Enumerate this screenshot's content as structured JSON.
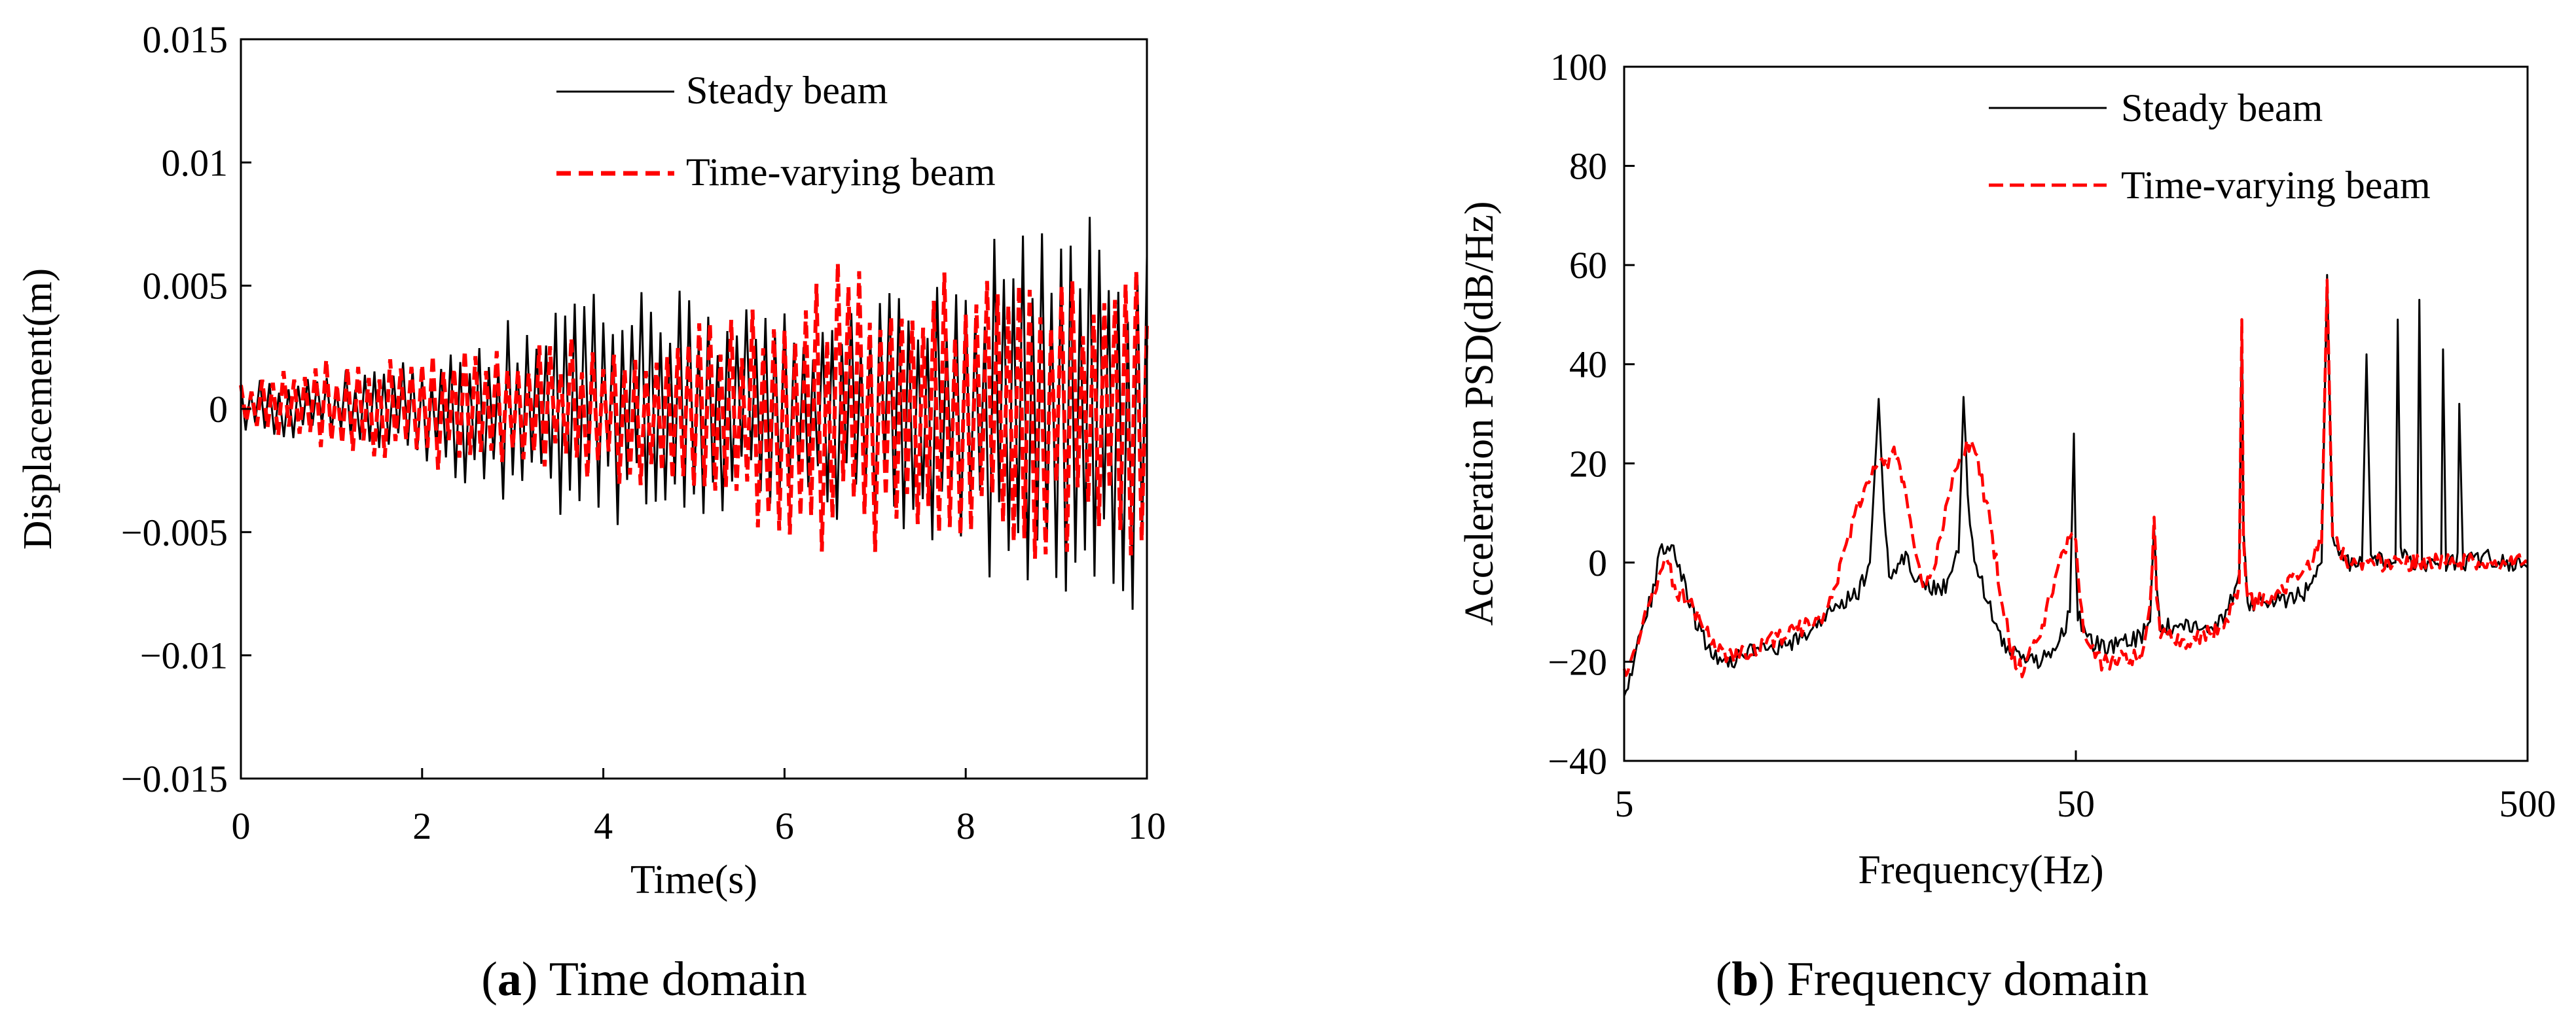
{
  "captions": {
    "a": {
      "open": "(",
      "letter": "a",
      "close": ")",
      "text": " Time domain"
    },
    "b": {
      "open": "(",
      "letter": "b",
      "close": ")",
      "text": " Frequency domain"
    }
  },
  "colors": {
    "steady": "#000000",
    "varying": "#ff0000"
  },
  "chart_data": [
    {
      "type": "line",
      "title": "",
      "xlabel": "Time(s)",
      "ylabel": "Displacement(m)",
      "xlim": [
        0,
        10
      ],
      "ylim": [
        -0.015,
        0.015
      ],
      "xticks": [
        0,
        2,
        4,
        6,
        8,
        10
      ],
      "xtick_labels": [
        "0",
        "2",
        "4",
        "6",
        "8",
        "10"
      ],
      "yticks": [
        0.015,
        0.01,
        0.005,
        0,
        -0.005,
        -0.01,
        -0.015
      ],
      "ytick_labels": [
        "0.015",
        "0.01",
        "0.005",
        "0",
        "−0.005",
        "−0.01",
        "−0.015"
      ],
      "legend_position": "top-right",
      "series": [
        {
          "name": "Steady beam",
          "style": "solid",
          "approx_oscillation_hz": 9.5,
          "envelope_t": [
            0,
            1,
            2,
            2.5,
            3,
            4,
            5,
            6,
            7,
            8,
            8.5,
            9,
            10
          ],
          "envelope_max": [
            0.0012,
            0.0015,
            0.002,
            0.003,
            0.0038,
            0.0048,
            0.0048,
            0.004,
            0.0045,
            0.006,
            0.0075,
            0.008,
            0.0075
          ],
          "envelope_min": [
            -0.0012,
            -0.0012,
            -0.002,
            -0.0035,
            -0.0042,
            -0.0048,
            -0.0045,
            -0.004,
            -0.005,
            -0.0065,
            -0.0075,
            -0.0085,
            -0.0085
          ]
        },
        {
          "name": "Time-varying beam",
          "style": "dashed",
          "approx_oscillation_hz": 8.5,
          "envelope_t": [
            0,
            1,
            2,
            2.5,
            3,
            4,
            5,
            6,
            6.5,
            7,
            8,
            9,
            10
          ],
          "envelope_max": [
            0.0012,
            0.0022,
            0.0025,
            0.0025,
            0.0028,
            0.003,
            0.0035,
            0.0048,
            0.006,
            0.006,
            0.006,
            0.0058,
            0.0057
          ],
          "envelope_min": [
            -0.001,
            -0.0018,
            -0.0025,
            -0.0028,
            -0.003,
            -0.003,
            -0.0035,
            -0.0055,
            -0.006,
            -0.0065,
            -0.0065,
            -0.006,
            -0.006
          ]
        }
      ]
    },
    {
      "type": "line",
      "title": "",
      "xlabel": "Frequency(Hz)",
      "ylabel": "Acceleration PSD(dB/Hz)",
      "xscale": "log",
      "xlim": [
        5,
        500
      ],
      "ylim": [
        -40,
        100
      ],
      "xticks": [
        5,
        50,
        500
      ],
      "xtick_labels": [
        "5",
        "50",
        "500"
      ],
      "yticks": [
        100,
        80,
        60,
        40,
        20,
        0,
        -20,
        -40
      ],
      "ytick_labels": [
        "100",
        "80",
        "60",
        "40",
        "20",
        "0",
        "−20",
        "−40"
      ],
      "legend_position": "top-right",
      "series": [
        {
          "name": "Steady beam",
          "style": "solid",
          "x": [
            5,
            5.2,
            5.5,
            5.8,
            6.0,
            6.3,
            6.7,
            7.2,
            7.8,
            8.5,
            9.5,
            10.5,
            12,
            13.5,
            15,
            16.5,
            17.5,
            18.3,
            18.8,
            19.3,
            20,
            21,
            22,
            24,
            26,
            27.5,
            28.2,
            28.8,
            29.5,
            31,
            33,
            35,
            37,
            40,
            43,
            46,
            48.5,
            49.5,
            50,
            50.5,
            52,
            54,
            57,
            60,
            65,
            70,
            73,
            74.5,
            75.5,
            77,
            80,
            85,
            95,
            105,
            110,
            115,
            116.5,
            117.5,
            120,
            125,
            140,
            160,
            175,
            180,
            185,
            200,
            215,
            220,
            225,
            240,
            255,
            258,
            262,
            275,
            285,
            288,
            292,
            310,
            322,
            325,
            330,
            345,
            350,
            353,
            360,
            400,
            450,
            500
          ],
          "y": [
            -26,
            -22,
            -12,
            -6,
            3,
            4,
            -2,
            -12,
            -18,
            -20,
            -18,
            -18,
            -16,
            -12,
            -8,
            -6,
            0,
            33,
            10,
            -2,
            -2,
            2,
            -3,
            -5,
            -5,
            2,
            32,
            15,
            3,
            -4,
            -12,
            -18,
            -18,
            -20,
            -19,
            -16,
            -10,
            26,
            0,
            -10,
            -14,
            -16,
            -17,
            -17,
            -16,
            -15,
            -11,
            8,
            -6,
            -13,
            -13,
            -13,
            -13,
            -12,
            -8,
            -2,
            48,
            5,
            -8,
            -8,
            -8,
            -6,
            0,
            58,
            5,
            0,
            0,
            42,
            2,
            0,
            0,
            49,
            2,
            0,
            0,
            53,
            0,
            0,
            1,
            43,
            0,
            0,
            2,
            32,
            0,
            1,
            0,
            -1
          ]
        },
        {
          "name": "Time-varying beam",
          "style": "dashed",
          "x": [
            5,
            5.3,
            5.6,
            5.9,
            6.2,
            6.6,
            7.2,
            7.8,
            8.5,
            9.5,
            10.5,
            12,
            13,
            14,
            15,
            16,
            17,
            18,
            19,
            20,
            21,
            22,
            23,
            24,
            25,
            26,
            27,
            28,
            29,
            30,
            32,
            34,
            36,
            38,
            40,
            43,
            46,
            49,
            50,
            51,
            52,
            54,
            57,
            60,
            63,
            66,
            70,
            73,
            74.5,
            75.5,
            77,
            80,
            85,
            95,
            105,
            110,
            115,
            116.5,
            117.5,
            120,
            125,
            140,
            160,
            175,
            180,
            185,
            200,
            500
          ],
          "y": [
            -22,
            -18,
            -10,
            -4,
            0,
            -6,
            -10,
            -16,
            -19,
            -18,
            -16,
            -14,
            -12,
            -10,
            -2,
            8,
            15,
            20,
            20,
            22,
            14,
            3,
            -4,
            -2,
            4,
            12,
            20,
            22,
            24,
            22,
            10,
            -5,
            -18,
            -22,
            -18,
            -10,
            0,
            6,
            4,
            -6,
            -14,
            -18,
            -20,
            -20,
            -19,
            -20,
            -18,
            -10,
            10,
            -8,
            -14,
            -15,
            -16,
            -15,
            -13,
            -10,
            -4,
            49,
            5,
            -8,
            -8,
            -6,
            -2,
            4,
            57,
            5,
            0,
            0
          ]
        }
      ]
    }
  ]
}
